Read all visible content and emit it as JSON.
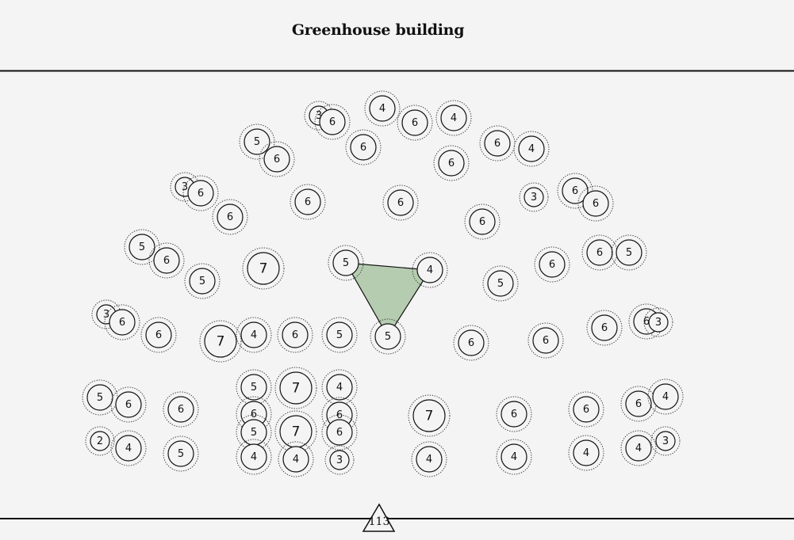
{
  "title": "Greenhouse building",
  "footer_marker": {
    "value": "113"
  },
  "colors": {
    "background": "#f5f4f5",
    "line": "#111111",
    "highlight_fill": "#b5ccb0"
  },
  "nodes": [
    {
      "value": 3
    },
    {
      "value": 6
    },
    {
      "value": 4
    },
    {
      "value": 6
    },
    {
      "value": 4
    },
    {
      "value": 5
    },
    {
      "value": 6
    },
    {
      "value": 6
    },
    {
      "value": 6
    },
    {
      "value": 6
    },
    {
      "value": 4
    },
    {
      "value": 3
    },
    {
      "value": 6
    },
    {
      "value": 6
    },
    {
      "value": 6
    },
    {
      "value": 6
    },
    {
      "value": 6
    },
    {
      "value": 3
    },
    {
      "value": 6
    },
    {
      "value": 6
    },
    {
      "value": 5
    },
    {
      "value": 6
    },
    {
      "value": 5
    },
    {
      "value": 7
    },
    {
      "value": 5
    },
    {
      "value": 4
    },
    {
      "value": 5
    },
    {
      "value": 6
    },
    {
      "value": 6
    },
    {
      "value": 5
    },
    {
      "value": 3
    },
    {
      "value": 6
    },
    {
      "value": 6
    },
    {
      "value": 7
    },
    {
      "value": 4
    },
    {
      "value": 6
    },
    {
      "value": 5
    },
    {
      "value": 5
    },
    {
      "value": 6
    },
    {
      "value": 6
    },
    {
      "value": 6
    },
    {
      "value": 6
    },
    {
      "value": 3
    },
    {
      "value": 5
    },
    {
      "value": 6
    },
    {
      "value": 6
    },
    {
      "value": 5
    },
    {
      "value": 7
    },
    {
      "value": 4
    },
    {
      "value": 6
    },
    {
      "value": 6
    },
    {
      "value": 7
    },
    {
      "value": 6
    },
    {
      "value": 6
    },
    {
      "value": 6
    },
    {
      "value": 4
    },
    {
      "value": 5
    },
    {
      "value": 7
    },
    {
      "value": 6
    },
    {
      "value": 2
    },
    {
      "value": 4
    },
    {
      "value": 5
    },
    {
      "value": 4
    },
    {
      "value": 4
    },
    {
      "value": 3
    },
    {
      "value": 4
    },
    {
      "value": 4
    },
    {
      "value": 4
    },
    {
      "value": 4
    },
    {
      "value": 3
    }
  ],
  "highlight": {
    "vertex_nodes": [
      24,
      25,
      37
    ]
  }
}
